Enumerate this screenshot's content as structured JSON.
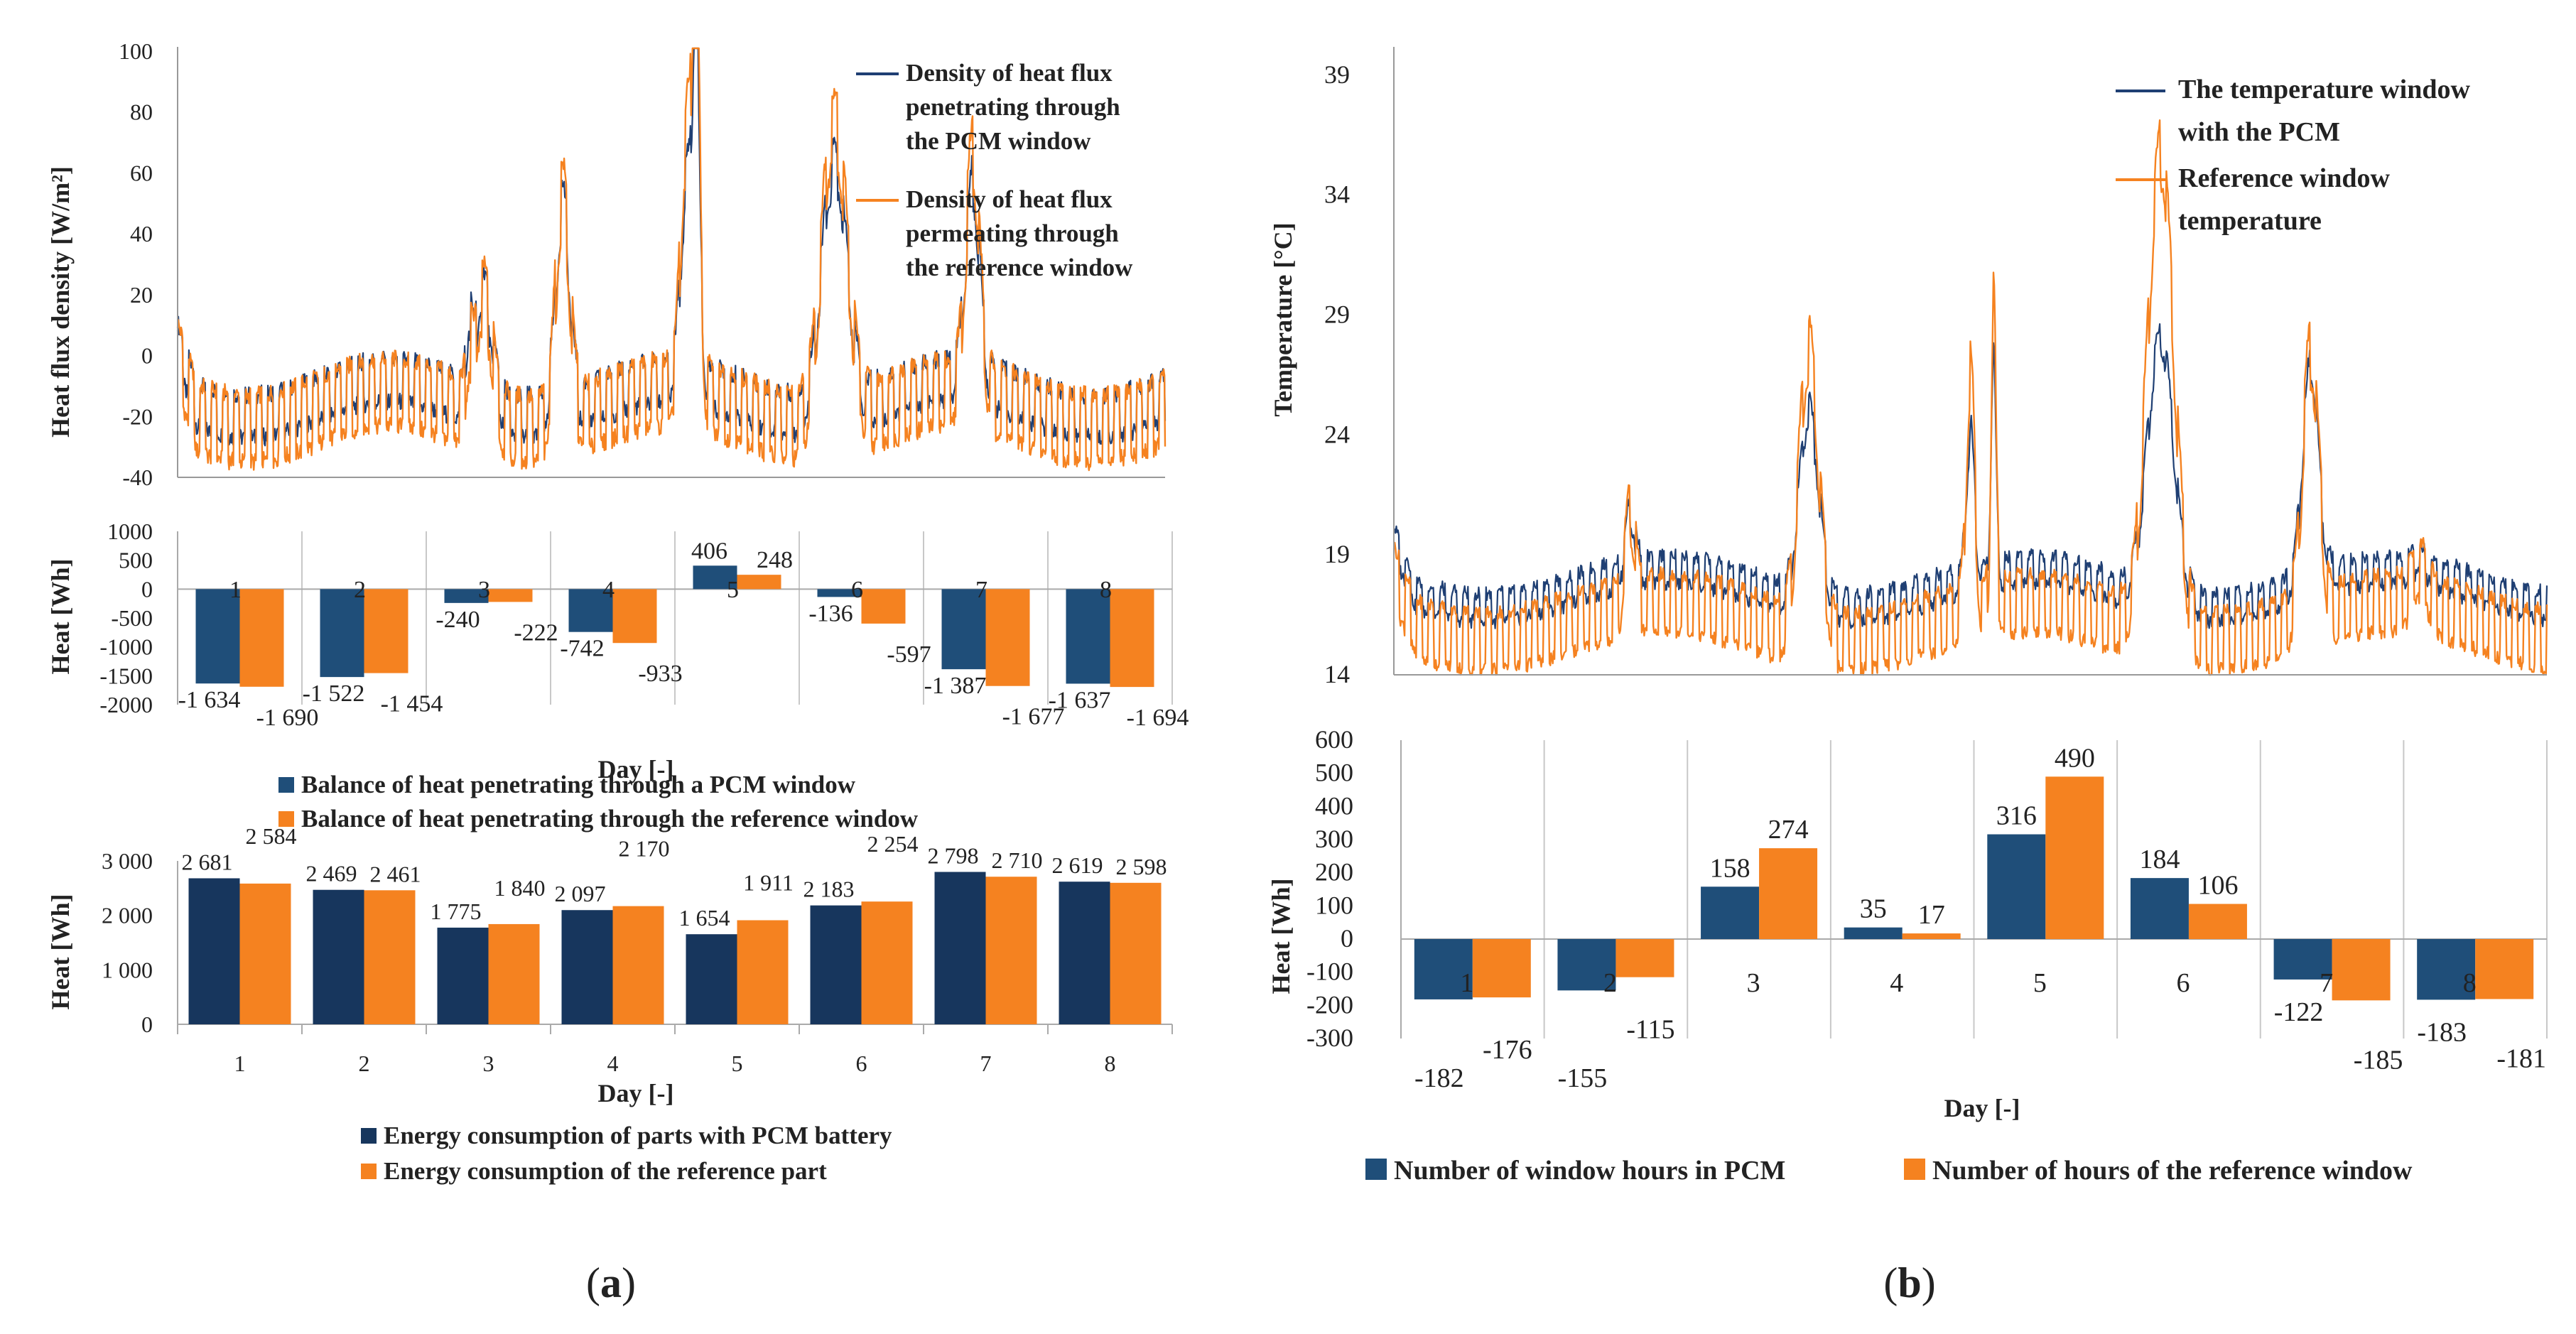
{
  "captions": {
    "a": "a",
    "b": "b"
  },
  "colors": {
    "pcm": "#1f3f73",
    "ref": "#f58220",
    "pcm_bar": "#1f4e79",
    "energy_pcm": "#17365d"
  },
  "chart_data": [
    {
      "id": "a1",
      "type": "line",
      "ylabel": "Heat flux density  [W/m²]",
      "ylim": [
        -40,
        100
      ],
      "yticks": [
        100,
        80,
        60,
        40,
        20,
        0,
        -20,
        -40
      ],
      "series": [
        {
          "name": "Density of heat flux penetrating through the PCM window",
          "lines": [
            "Density of heat flux",
            "penetrating through",
            "the PCM window"
          ]
        },
        {
          "name": "Density of heat flux permeating through the reference window",
          "lines": [
            "Density of heat flux",
            "permeating through",
            "the reference window"
          ]
        }
      ]
    },
    {
      "id": "a2",
      "type": "bar",
      "ylabel": "Heat  [Wh]",
      "xlabel": "Day [-]",
      "ylim": [
        -2000,
        1000
      ],
      "yticks": [
        "1000",
        "500",
        "0",
        "-500",
        "-1000",
        "-1500",
        "-2000"
      ],
      "categories": [
        "1",
        "2",
        "3",
        "4",
        "5",
        "6",
        "7",
        "8"
      ],
      "series": [
        {
          "name": "Balance of heat penetrating through a PCM window",
          "values": [
            -1634,
            -1522,
            -240,
            -742,
            406,
            -136,
            -1387,
            -1637
          ],
          "labels": [
            "-1 634",
            "-1 522",
            "-240",
            "-742",
            "406",
            "-136",
            "-1 387",
            "-1 637"
          ]
        },
        {
          "name": "Balance of heat penetrating through the reference window",
          "values": [
            -1690,
            -1454,
            -222,
            -933,
            248,
            -597,
            -1677,
            -1694
          ],
          "labels": [
            "-1 690",
            "-1 454",
            "-222",
            "-933",
            "248",
            "-597",
            "-1 677",
            "-1 694"
          ]
        }
      ]
    },
    {
      "id": "a3",
      "type": "bar",
      "ylabel": "Heat  [Wh]",
      "xlabel": "Day [-]",
      "ylim": [
        0,
        3000
      ],
      "yticks": [
        "3 000",
        "2 000",
        "1 000",
        "0"
      ],
      "categories": [
        "1",
        "2",
        "3",
        "4",
        "5",
        "6",
        "7",
        "8"
      ],
      "series": [
        {
          "name": "Energy consumption of parts with PCM battery",
          "values": [
            2681,
            2469,
            1775,
            2097,
            1654,
            2183,
            2798,
            2619
          ],
          "labels": [
            "2 681",
            "2 469",
            "1 775",
            "2 097",
            "1 654",
            "2 183",
            "2 798",
            "2 619"
          ]
        },
        {
          "name": "Energy consumption of the reference part",
          "values": [
            2584,
            2461,
            1840,
            2170,
            1911,
            2254,
            2710,
            2598
          ],
          "labels": [
            "2 584",
            "2 461",
            "1 840",
            "2 170",
            "1 911",
            "2 254",
            "2 710",
            "2 598"
          ]
        }
      ]
    },
    {
      "id": "b1",
      "type": "line",
      "ylabel": "Temperature [°C]",
      "ylim": [
        14,
        40
      ],
      "yticks": [
        39,
        34,
        29,
        24,
        19,
        14
      ],
      "series": [
        {
          "name": "The temperature window with the PCM",
          "lines": [
            "The temperature window",
            "with the PCM"
          ]
        },
        {
          "name": "Reference window temperature",
          "lines": [
            "Reference window",
            "temperature"
          ]
        }
      ]
    },
    {
      "id": "b2",
      "type": "bar",
      "ylabel": "Heat [Wh]",
      "xlabel": "Day [-]",
      "ylim": [
        -300,
        600
      ],
      "yticks": [
        "600",
        "500",
        "400",
        "300",
        "200",
        "100",
        "0",
        "-100",
        "-200",
        "-300"
      ],
      "categories": [
        "1",
        "2",
        "3",
        "4",
        "5",
        "6",
        "7",
        "8"
      ],
      "series": [
        {
          "name": "Number of window hours in PCM",
          "values": [
            -182,
            -155,
            158,
            35,
            316,
            184,
            -122,
            -183
          ],
          "labels": [
            "-182",
            "-155",
            "158",
            "35",
            "316",
            "184",
            "-122",
            "-183"
          ]
        },
        {
          "name": "Number of hours of the reference window",
          "values": [
            -176,
            -115,
            274,
            17,
            490,
            106,
            -185,
            -181
          ],
          "labels": [
            "-176",
            "-115",
            "274",
            "17",
            "490",
            "106",
            "-185",
            "-181"
          ]
        }
      ]
    }
  ]
}
